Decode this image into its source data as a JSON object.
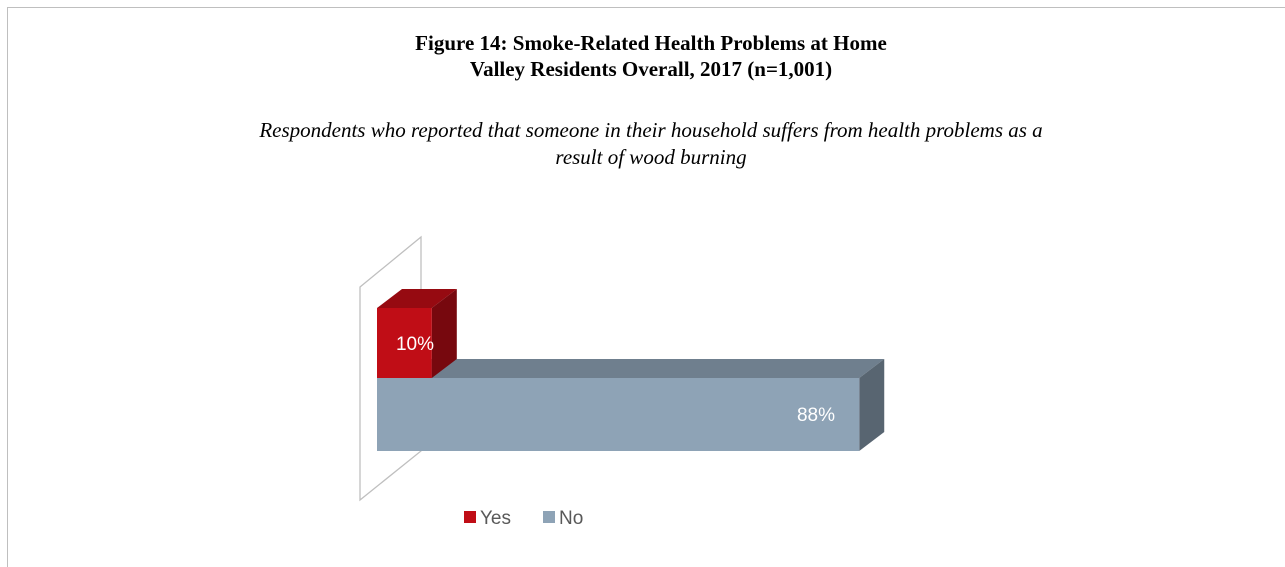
{
  "figure": {
    "title_line1": "Figure 14: Smoke-Related Health Problems at Home",
    "title_line2": "Valley Residents Overall, 2017 (n=1,001)",
    "subtitle_line1": "Respondents who reported that someone in their household suffers from health problems as a",
    "subtitle_line2": "result of wood burning"
  },
  "chart_data": {
    "type": "bar",
    "orientation": "horizontal",
    "style": "3d",
    "categories": [
      "Yes",
      "No"
    ],
    "values": [
      10,
      88
    ],
    "data_labels": [
      "10%",
      "88%"
    ],
    "unit": "%",
    "xlim": [
      0,
      100
    ],
    "grid": false,
    "legend": {
      "position": "bottom",
      "entries": [
        "Yes",
        "No"
      ]
    },
    "colors": {
      "Yes": "#c00d16",
      "No": "#8ea3b6"
    }
  }
}
